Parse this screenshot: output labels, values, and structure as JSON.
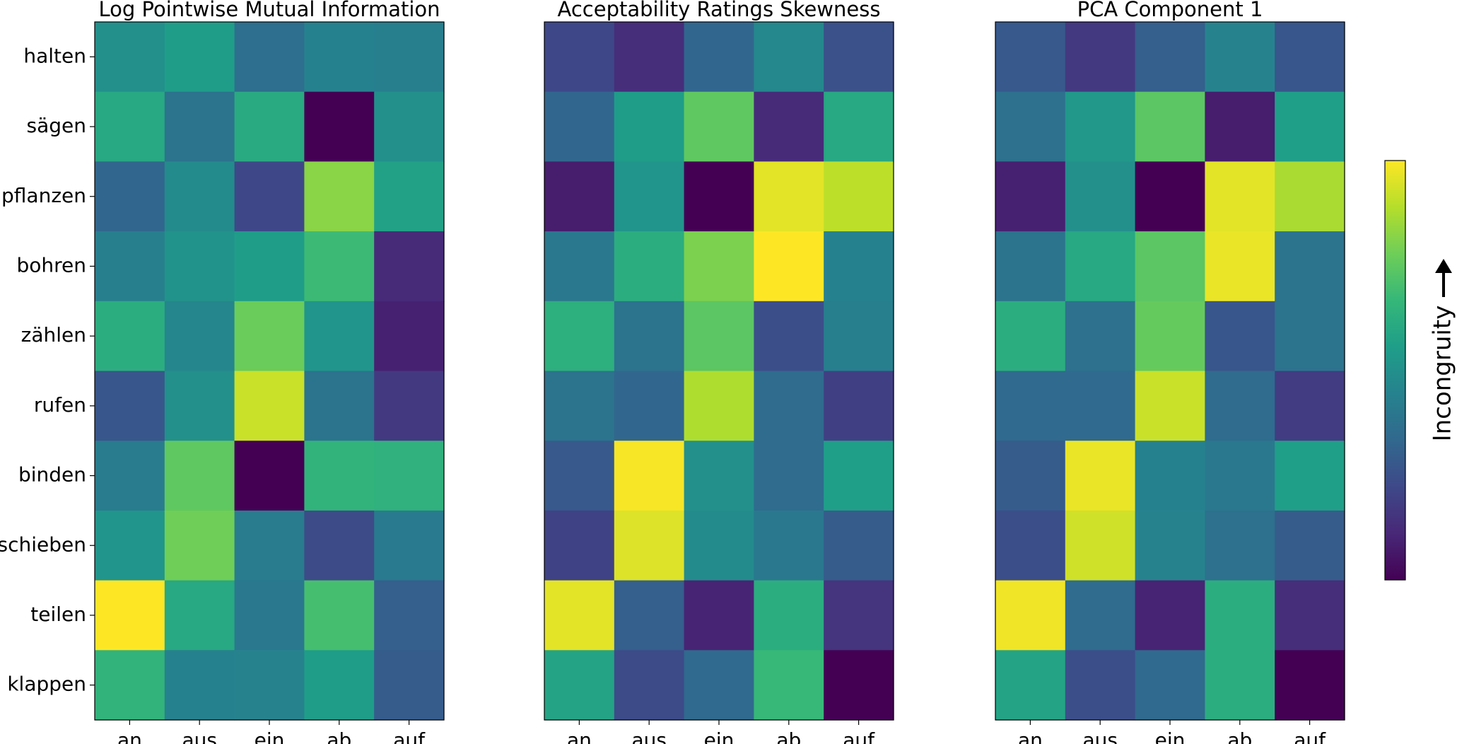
{
  "chart_data": [
    {
      "type": "heatmap",
      "title": "Log Pointwise Mutual Information",
      "x_categories": [
        "an",
        "aus",
        "ein",
        "ab",
        "auf"
      ],
      "y_categories": [
        "halten",
        "sägen",
        "pflanzen",
        "bohren",
        "zählen",
        "rufen",
        "binden",
        "schieben",
        "teilen",
        "klappen"
      ],
      "values": [
        [
          0.5,
          0.55,
          0.36,
          0.44,
          0.43
        ],
        [
          0.6,
          0.38,
          0.61,
          0.0,
          0.5
        ],
        [
          0.33,
          0.48,
          0.22,
          0.82,
          0.57
        ],
        [
          0.43,
          0.51,
          0.55,
          0.68,
          0.12
        ],
        [
          0.62,
          0.46,
          0.77,
          0.52,
          0.09
        ],
        [
          0.27,
          0.5,
          0.92,
          0.38,
          0.17
        ],
        [
          0.42,
          0.75,
          0.0,
          0.65,
          0.64
        ],
        [
          0.52,
          0.78,
          0.42,
          0.23,
          0.41
        ],
        [
          1.0,
          0.6,
          0.4,
          0.7,
          0.3
        ],
        [
          0.65,
          0.44,
          0.45,
          0.55,
          0.29
        ]
      ]
    },
    {
      "type": "heatmap",
      "title": "Acceptability Ratings Skewness",
      "x_categories": [
        "an",
        "aus",
        "ein",
        "ab",
        "auf"
      ],
      "y_categories": [],
      "values": [
        [
          0.22,
          0.13,
          0.33,
          0.47,
          0.25
        ],
        [
          0.33,
          0.55,
          0.75,
          0.12,
          0.6
        ],
        [
          0.08,
          0.52,
          0.0,
          0.96,
          0.9
        ],
        [
          0.4,
          0.62,
          0.8,
          1.0,
          0.44
        ],
        [
          0.63,
          0.38,
          0.74,
          0.24,
          0.43
        ],
        [
          0.38,
          0.33,
          0.88,
          0.35,
          0.19
        ],
        [
          0.28,
          0.99,
          0.5,
          0.35,
          0.56
        ],
        [
          0.2,
          0.95,
          0.48,
          0.4,
          0.29
        ],
        [
          0.96,
          0.3,
          0.1,
          0.62,
          0.15
        ],
        [
          0.58,
          0.23,
          0.34,
          0.67,
          0.0
        ]
      ]
    },
    {
      "type": "heatmap",
      "title": "PCA Component 1",
      "x_categories": [
        "an",
        "aus",
        "ein",
        "ab",
        "auf"
      ],
      "y_categories": [],
      "values": [
        [
          0.28,
          0.17,
          0.3,
          0.45,
          0.27
        ],
        [
          0.37,
          0.53,
          0.74,
          0.08,
          0.56
        ],
        [
          0.09,
          0.5,
          0.0,
          0.96,
          0.87
        ],
        [
          0.38,
          0.6,
          0.74,
          0.97,
          0.38
        ],
        [
          0.62,
          0.37,
          0.76,
          0.27,
          0.38
        ],
        [
          0.34,
          0.34,
          0.92,
          0.35,
          0.18
        ],
        [
          0.29,
          0.97,
          0.44,
          0.4,
          0.56
        ],
        [
          0.24,
          0.93,
          0.45,
          0.37,
          0.29
        ],
        [
          0.98,
          0.35,
          0.1,
          0.62,
          0.13
        ],
        [
          0.58,
          0.24,
          0.34,
          0.62,
          0.0
        ]
      ]
    }
  ],
  "colorbar": {
    "label": "Incongruity",
    "colormap": "viridis",
    "range": [
      0,
      1
    ],
    "arrow": "up"
  },
  "colors": {
    "viridis_stops": [
      "#440154",
      "#482878",
      "#3e4989",
      "#31688e",
      "#26828e",
      "#1f9e89",
      "#35b779",
      "#6ece58",
      "#b5de2b",
      "#fde725"
    ],
    "frame": "#000000"
  }
}
